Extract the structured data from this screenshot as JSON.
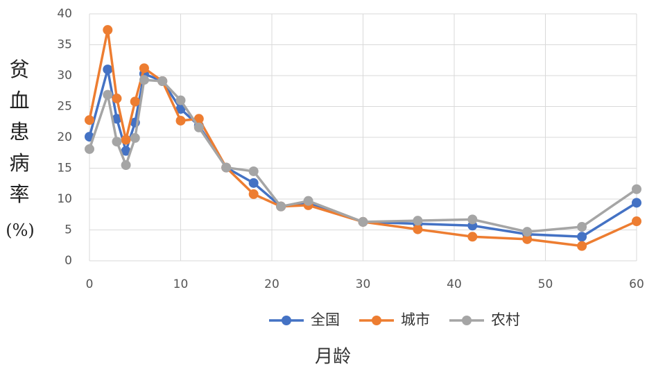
{
  "chart_data": {
    "type": "line",
    "y_label": "贫血患病率",
    "y_unit": "(%)",
    "x_label": "月龄",
    "x": [
      0,
      2,
      3,
      4,
      5,
      6,
      8,
      10,
      12,
      15,
      18,
      21,
      24,
      30,
      36,
      42,
      48,
      54,
      60
    ],
    "series": [
      {
        "name": "全国",
        "color": "#4472c4",
        "values": [
          20.1,
          31.0,
          23.0,
          17.8,
          22.4,
          30.3,
          29.1,
          24.6,
          21.9,
          15.1,
          12.6,
          8.8,
          9.4,
          6.3,
          6.0,
          5.7,
          4.3,
          3.9,
          9.4
        ]
      },
      {
        "name": "城市",
        "color": "#ed7d31",
        "values": [
          22.8,
          37.4,
          26.3,
          19.6,
          25.8,
          31.2,
          29.1,
          22.7,
          23.0,
          15.1,
          10.8,
          8.8,
          9.0,
          6.3,
          5.1,
          3.9,
          3.5,
          2.4,
          6.4
        ]
      },
      {
        "name": "农村",
        "color": "#a5a5a5",
        "values": [
          18.1,
          26.9,
          19.3,
          15.5,
          19.9,
          29.3,
          29.1,
          26.0,
          21.6,
          15.1,
          14.5,
          8.8,
          9.7,
          6.3,
          6.5,
          6.7,
          4.7,
          5.5,
          11.6
        ]
      }
    ],
    "xlim": [
      0,
      60
    ],
    "xticks": [
      0,
      10,
      20,
      30,
      40,
      50,
      60
    ],
    "ylim": [
      0,
      40
    ],
    "yticks": [
      0,
      5,
      10,
      15,
      20,
      25,
      30,
      35,
      40
    ],
    "grid": true,
    "legend": "bottom"
  }
}
